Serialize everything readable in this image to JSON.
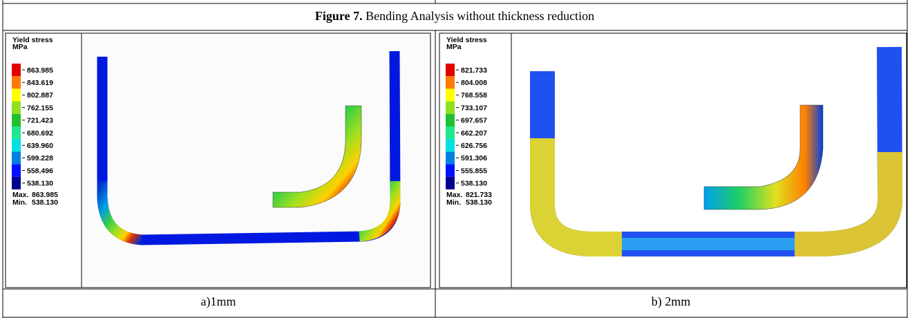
{
  "caption": {
    "label": "Figure 7.",
    "text": "Bending Analysis without thickness reduction"
  },
  "panels": [
    {
      "legend_title": "Yield stress",
      "legend_unit": "MPa",
      "levels": [
        "863.985",
        "843.619",
        "802.887",
        "762.155",
        "721.423",
        "680.692",
        "639.960",
        "599.228",
        "558.496",
        "538.130"
      ],
      "max_label": "Max.",
      "max": "863.985",
      "min_label": "Min.",
      "min": "538.130",
      "caption": "a)1mm"
    },
    {
      "legend_title": "Yield stress",
      "legend_unit": "MPa",
      "levels": [
        "821.733",
        "804.008",
        "768.558",
        "733.107",
        "697.657",
        "662.207",
        "626.756",
        "591.306",
        "555.855",
        "538.130"
      ],
      "max_label": "Max.",
      "max": "821.733",
      "min_label": "Min.",
      "min": "538.130",
      "caption": "b) 2mm"
    }
  ]
}
